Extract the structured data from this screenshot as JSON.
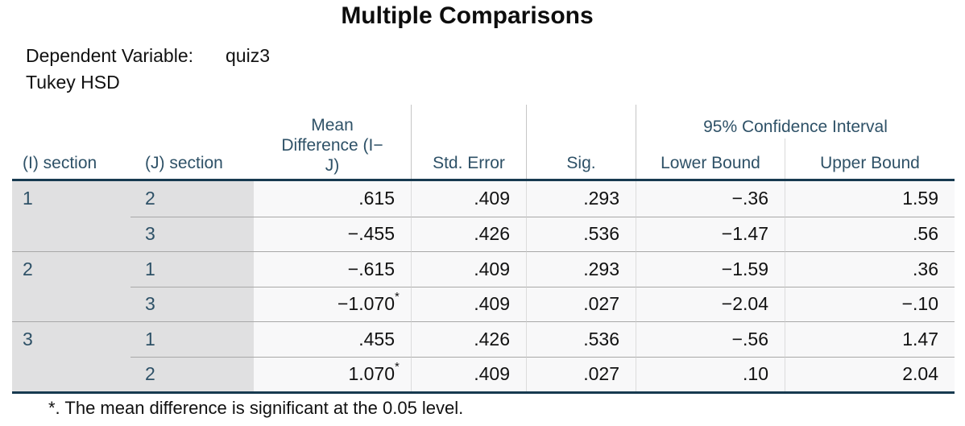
{
  "title": "Multiple Comparisons",
  "subtitle": {
    "dependent_variable_label": "Dependent Variable:",
    "dependent_variable_value": "quiz3",
    "method": "Tukey HSD"
  },
  "table": {
    "headers": {
      "i": "(I) section",
      "j": "(J) section",
      "mean_diff": "Mean\nDifference (I−\nJ)",
      "std_error": "Std. Error",
      "sig": "Sig.",
      "ci": "95% Confidence Interval",
      "lower": "Lower Bound",
      "upper": "Upper Bound"
    },
    "rows": [
      {
        "i": "1",
        "j": "2",
        "mean_diff": ".615",
        "star": "",
        "std_error": ".409",
        "sig": ".293",
        "lower": "−.36",
        "upper": "1.59"
      },
      {
        "i": "",
        "j": "3",
        "mean_diff": "−.455",
        "star": "",
        "std_error": ".426",
        "sig": ".536",
        "lower": "−1.47",
        "upper": ".56"
      },
      {
        "i": "2",
        "j": "1",
        "mean_diff": "−.615",
        "star": "",
        "std_error": ".409",
        "sig": ".293",
        "lower": "−1.59",
        "upper": ".36"
      },
      {
        "i": "",
        "j": "3",
        "mean_diff": "−1.070",
        "star": "*",
        "std_error": ".409",
        "sig": ".027",
        "lower": "−2.04",
        "upper": "−.10"
      },
      {
        "i": "3",
        "j": "1",
        "mean_diff": ".455",
        "star": "",
        "std_error": ".426",
        "sig": ".536",
        "lower": "−.56",
        "upper": "1.47"
      },
      {
        "i": "",
        "j": "2",
        "mean_diff": "1.070",
        "star": "*",
        "std_error": ".409",
        "sig": ".027",
        "lower": ".10",
        "upper": "2.04"
      }
    ],
    "footnote": "*. The mean difference is significant at the 0.05 level."
  },
  "colors": {
    "header_text": "#2e5167",
    "dark_rule": "#173a50",
    "label_column_bg": "#e0e0e1",
    "data_cell_bg": "#f8f8f9",
    "row_divider": "#a8a8a8",
    "column_divider": "#dcdcdc"
  },
  "chart_data": {
    "type": "table",
    "title": "Multiple Comparisons",
    "subtitle": [
      "Dependent Variable: quiz3",
      "Tukey HSD"
    ],
    "columns": [
      "(I) section",
      "(J) section",
      "Mean Difference (I-J)",
      "Std. Error",
      "Sig.",
      "95% CI Lower Bound",
      "95% CI Upper Bound"
    ],
    "rows": [
      [
        "1",
        "2",
        0.615,
        0.409,
        0.293,
        -0.36,
        1.59
      ],
      [
        "1",
        "3",
        -0.455,
        0.426,
        0.536,
        -1.47,
        0.56
      ],
      [
        "2",
        "1",
        -0.615,
        0.409,
        0.293,
        -1.59,
        0.36
      ],
      [
        "2",
        "3",
        -1.07,
        0.409,
        0.027,
        -2.04,
        -0.1
      ],
      [
        "3",
        "1",
        0.455,
        0.426,
        0.536,
        -0.56,
        1.47
      ],
      [
        "3",
        "2",
        1.07,
        0.409,
        0.027,
        0.1,
        2.04
      ]
    ],
    "significant_row_indices": [
      3,
      5
    ],
    "footnote": "*. The mean difference is significant at the 0.05 level."
  }
}
